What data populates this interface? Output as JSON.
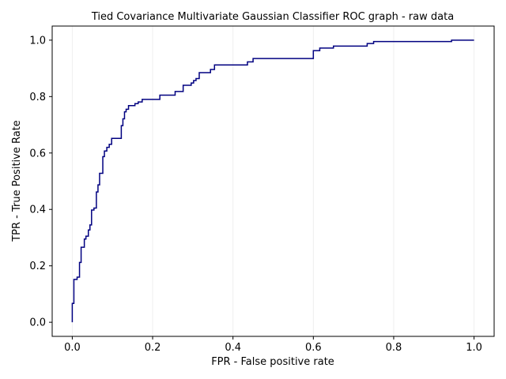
{
  "chart_data": {
    "type": "line",
    "title": "Tied Covariance Multivariate Gaussian Classifier ROC graph - raw data",
    "xlabel": "FPR - False positive rate",
    "ylabel": "TPR - True Positive Rate",
    "xlim": [
      -0.05,
      1.05
    ],
    "ylim": [
      -0.05,
      1.05
    ],
    "xticks": [
      0.0,
      0.2,
      0.4,
      0.6,
      0.8,
      1.0
    ],
    "yticks": [
      0.0,
      0.2,
      0.4,
      0.6,
      0.8,
      1.0
    ],
    "xtick_labels": [
      "0.0",
      "0.2",
      "0.4",
      "0.6",
      "0.8",
      "1.0"
    ],
    "ytick_labels": [
      "0.0",
      "0.2",
      "0.4",
      "0.6",
      "0.8",
      "1.0"
    ],
    "grid": "vertical",
    "line_color": "#000080",
    "grid_color": "#eeeeee",
    "series": [
      {
        "points": [
          [
            0.0,
            0.0
          ],
          [
            0.0,
            0.067
          ],
          [
            0.004,
            0.067
          ],
          [
            0.004,
            0.152
          ],
          [
            0.012,
            0.152
          ],
          [
            0.012,
            0.16
          ],
          [
            0.018,
            0.16
          ],
          [
            0.018,
            0.212
          ],
          [
            0.022,
            0.212
          ],
          [
            0.022,
            0.266
          ],
          [
            0.03,
            0.266
          ],
          [
            0.03,
            0.295
          ],
          [
            0.034,
            0.295
          ],
          [
            0.034,
            0.305
          ],
          [
            0.04,
            0.305
          ],
          [
            0.04,
            0.327
          ],
          [
            0.044,
            0.327
          ],
          [
            0.044,
            0.345
          ],
          [
            0.048,
            0.345
          ],
          [
            0.048,
            0.398
          ],
          [
            0.054,
            0.398
          ],
          [
            0.054,
            0.405
          ],
          [
            0.06,
            0.405
          ],
          [
            0.06,
            0.462
          ],
          [
            0.064,
            0.462
          ],
          [
            0.064,
            0.487
          ],
          [
            0.068,
            0.487
          ],
          [
            0.068,
            0.528
          ],
          [
            0.076,
            0.528
          ],
          [
            0.076,
            0.587
          ],
          [
            0.08,
            0.587
          ],
          [
            0.08,
            0.607
          ],
          [
            0.086,
            0.607
          ],
          [
            0.086,
            0.62
          ],
          [
            0.092,
            0.62
          ],
          [
            0.092,
            0.631
          ],
          [
            0.098,
            0.631
          ],
          [
            0.098,
            0.652
          ],
          [
            0.122,
            0.652
          ],
          [
            0.122,
            0.697
          ],
          [
            0.126,
            0.697
          ],
          [
            0.126,
            0.721
          ],
          [
            0.13,
            0.721
          ],
          [
            0.13,
            0.746
          ],
          [
            0.134,
            0.746
          ],
          [
            0.134,
            0.755
          ],
          [
            0.14,
            0.755
          ],
          [
            0.14,
            0.768
          ],
          [
            0.156,
            0.768
          ],
          [
            0.156,
            0.775
          ],
          [
            0.164,
            0.775
          ],
          [
            0.164,
            0.781
          ],
          [
            0.174,
            0.781
          ],
          [
            0.174,
            0.79
          ],
          [
            0.218,
            0.79
          ],
          [
            0.218,
            0.805
          ],
          [
            0.256,
            0.805
          ],
          [
            0.256,
            0.818
          ],
          [
            0.276,
            0.818
          ],
          [
            0.276,
            0.84
          ],
          [
            0.296,
            0.84
          ],
          [
            0.296,
            0.848
          ],
          [
            0.302,
            0.848
          ],
          [
            0.302,
            0.857
          ],
          [
            0.308,
            0.857
          ],
          [
            0.308,
            0.864
          ],
          [
            0.316,
            0.864
          ],
          [
            0.316,
            0.885
          ],
          [
            0.344,
            0.885
          ],
          [
            0.344,
            0.896
          ],
          [
            0.354,
            0.896
          ],
          [
            0.354,
            0.912
          ],
          [
            0.436,
            0.912
          ],
          [
            0.436,
            0.923
          ],
          [
            0.45,
            0.923
          ],
          [
            0.45,
            0.935
          ],
          [
            0.6,
            0.935
          ],
          [
            0.6,
            0.963
          ],
          [
            0.616,
            0.963
          ],
          [
            0.616,
            0.972
          ],
          [
            0.65,
            0.972
          ],
          [
            0.65,
            0.979
          ],
          [
            0.734,
            0.979
          ],
          [
            0.734,
            0.988
          ],
          [
            0.75,
            0.988
          ],
          [
            0.75,
            0.995
          ],
          [
            0.944,
            0.995
          ],
          [
            0.944,
            1.0
          ],
          [
            1.0,
            1.0
          ]
        ]
      }
    ]
  }
}
